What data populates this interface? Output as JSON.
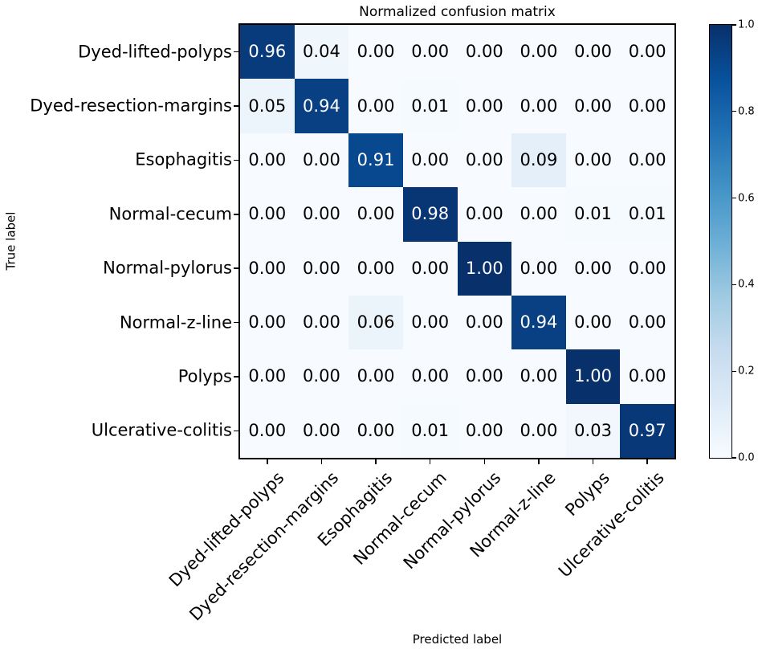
{
  "chart_data": {
    "type": "heatmap",
    "title": "Normalized confusion matrix",
    "xlabel": "Predicted label",
    "ylabel": "True label",
    "categories": [
      "Dyed-lifted-polyps",
      "Dyed-resection-margins",
      "Esophagitis",
      "Normal-cecum",
      "Normal-pylorus",
      "Normal-z-line",
      "Polyps",
      "Ulcerative-colitis"
    ],
    "matrix": [
      [
        0.96,
        0.04,
        0.0,
        0.0,
        0.0,
        0.0,
        0.0,
        0.0
      ],
      [
        0.05,
        0.94,
        0.0,
        0.01,
        0.0,
        0.0,
        0.0,
        0.0
      ],
      [
        0.0,
        0.0,
        0.91,
        0.0,
        0.0,
        0.09,
        0.0,
        0.0
      ],
      [
        0.0,
        0.0,
        0.0,
        0.98,
        0.0,
        0.0,
        0.01,
        0.01
      ],
      [
        0.0,
        0.0,
        0.0,
        0.0,
        1.0,
        0.0,
        0.0,
        0.0
      ],
      [
        0.0,
        0.0,
        0.06,
        0.0,
        0.0,
        0.94,
        0.0,
        0.0
      ],
      [
        0.0,
        0.0,
        0.0,
        0.0,
        0.0,
        0.0,
        1.0,
        0.0
      ],
      [
        0.0,
        0.0,
        0.0,
        0.01,
        0.0,
        0.0,
        0.03,
        0.97
      ]
    ],
    "value_decimals": 2,
    "colorbar": {
      "range": [
        0.0,
        1.0
      ],
      "tick_values": [
        0.0,
        0.2,
        0.4,
        0.6,
        0.8,
        1.0
      ],
      "tick_labels": [
        "0.0",
        "0.2",
        "0.4",
        "0.6",
        "0.8",
        "1.0"
      ],
      "position": "right"
    },
    "colormap": {
      "name": "Blues",
      "stops": [
        [
          0.0,
          "#f7fbff"
        ],
        [
          0.125,
          "#deebf7"
        ],
        [
          0.25,
          "#c6dbef"
        ],
        [
          0.375,
          "#9ecae1"
        ],
        [
          0.5,
          "#6baed6"
        ],
        [
          0.625,
          "#4292c6"
        ],
        [
          0.75,
          "#2171b5"
        ],
        [
          0.875,
          "#08519c"
        ],
        [
          1.0,
          "#08306b"
        ]
      ]
    },
    "cell_text": {
      "light_color": "#ffffff",
      "dark_color": "#000000",
      "threshold": 0.5
    },
    "axis_color": "#000000",
    "grid": false
  }
}
